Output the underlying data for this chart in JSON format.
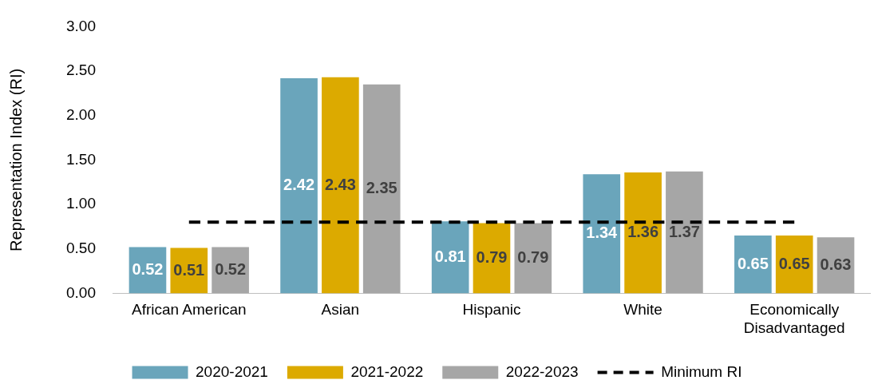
{
  "chart_data": {
    "type": "bar",
    "ylabel": "Representation Index (RI)",
    "categories": [
      "African American",
      "Asian",
      "Hispanic",
      "White",
      "Economically Disadvantaged"
    ],
    "series": [
      {
        "name": "2020-2021",
        "color": "#6aa5bb",
        "values": [
          0.52,
          2.42,
          0.81,
          1.34,
          0.65
        ],
        "value_labels": [
          "0.52",
          "2.42",
          "0.81",
          "1.34",
          "0.65"
        ]
      },
      {
        "name": "2021-2022",
        "color": "#dcaa00",
        "values": [
          0.51,
          2.43,
          0.79,
          1.36,
          0.65
        ],
        "value_labels": [
          "0.51",
          "2.43",
          "0.79",
          "1.36",
          "0.65"
        ]
      },
      {
        "name": "2022-2023",
        "color": "#a6a6a6",
        "values": [
          0.52,
          2.35,
          0.79,
          1.37,
          0.63
        ],
        "value_labels": [
          "0.52",
          "2.35",
          "0.79",
          "1.37",
          "0.63"
        ]
      },
      {
        "name": "Minimum RI",
        "type": "line",
        "color": "#000000",
        "line_style": "dashed",
        "marker": "none",
        "values": [
          0.8,
          0.8,
          0.8,
          0.8,
          0.8
        ]
      }
    ],
    "ylim": [
      0,
      3
    ],
    "yticks": [
      {
        "value": 0,
        "label": "0.00"
      },
      {
        "value": 0.5,
        "label": "0.50"
      },
      {
        "value": 1,
        "label": "1.00"
      },
      {
        "value": 1.5,
        "label": "1.50"
      },
      {
        "value": 2,
        "label": "2.00"
      },
      {
        "value": 2.5,
        "label": "2.50"
      },
      {
        "value": 3,
        "label": "3.00"
      }
    ],
    "grid": false,
    "legend": "bottom"
  }
}
